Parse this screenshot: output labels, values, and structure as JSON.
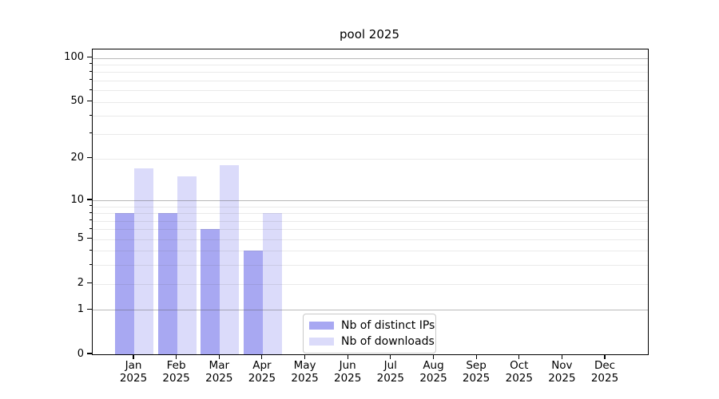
{
  "title": "pool 2025",
  "chart_data": {
    "type": "bar",
    "title": "pool 2025",
    "xlabel": "",
    "ylabel": "",
    "categories": [
      {
        "month": "Jan",
        "year": "2025"
      },
      {
        "month": "Feb",
        "year": "2025"
      },
      {
        "month": "Mar",
        "year": "2025"
      },
      {
        "month": "Apr",
        "year": "2025"
      },
      {
        "month": "May",
        "year": "2025"
      },
      {
        "month": "Jun",
        "year": "2025"
      },
      {
        "month": "Jul",
        "year": "2025"
      },
      {
        "month": "Aug",
        "year": "2025"
      },
      {
        "month": "Sep",
        "year": "2025"
      },
      {
        "month": "Oct",
        "year": "2025"
      },
      {
        "month": "Nov",
        "year": "2025"
      },
      {
        "month": "Dec",
        "year": "2025"
      }
    ],
    "series": [
      {
        "name": "Nb of distinct IPs",
        "color": "#a8a8f2",
        "values": [
          8,
          8,
          6,
          4,
          0,
          0,
          0,
          0,
          0,
          0,
          0,
          0
        ]
      },
      {
        "name": "Nb of downloads",
        "color": "#dbdbfa",
        "values": [
          17,
          15,
          18,
          8,
          0,
          0,
          0,
          0,
          0,
          0,
          0,
          0
        ]
      }
    ],
    "y_axis": {
      "scale": "log1p",
      "ylim": [
        0,
        114
      ],
      "tick_values": [
        0,
        1,
        2,
        5,
        10,
        20,
        50,
        100
      ],
      "major_grid_values": [
        1,
        10,
        100
      ],
      "minor_grid_values": [
        2,
        3,
        4,
        5,
        6,
        7,
        8,
        9,
        20,
        30,
        40,
        50,
        60,
        70,
        80,
        90
      ]
    },
    "legend": {
      "position": "lower center",
      "entries": [
        "Nb of distinct IPs",
        "Nb of downloads"
      ]
    },
    "style": {
      "background": "#ffffff",
      "spine_color": "#000000",
      "grid_major_color": "rgba(80,80,80,0.40)",
      "grid_minor_color": "rgba(80,80,80,0.12)"
    }
  }
}
